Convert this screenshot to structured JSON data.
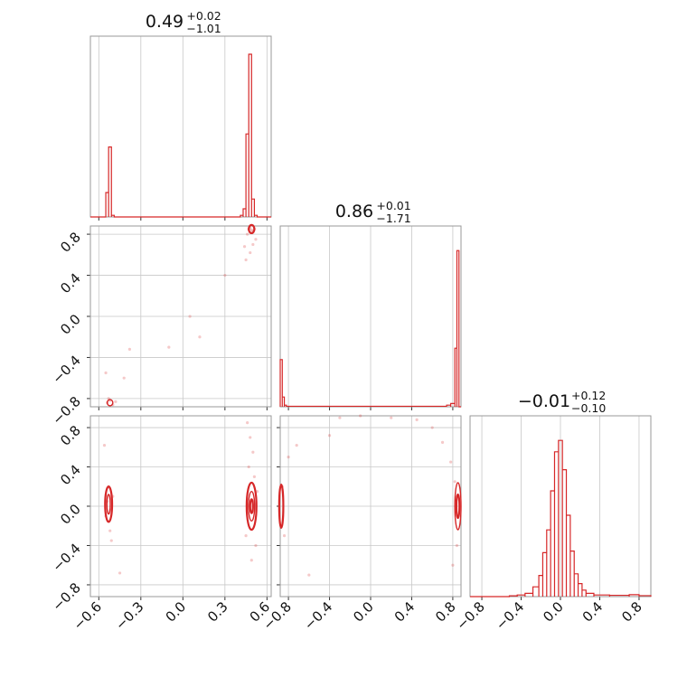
{
  "chart_data": {
    "type": "corner",
    "color": "#d62728",
    "grid": true,
    "parameters": [
      {
        "title": "0.49",
        "plus": "+0.02",
        "minus": "−1.01",
        "range": [
          -0.66,
          0.63
        ],
        "ticks": [
          -0.6,
          -0.3,
          0.0,
          0.3,
          0.6
        ],
        "tick_labels": [
          "−0.6",
          "−0.3",
          "0.0",
          "0.3",
          "0.6"
        ]
      },
      {
        "title": "0.86",
        "plus": "+0.01",
        "minus": "−1.71",
        "range": [
          -0.88,
          0.88
        ],
        "ticks": [
          -0.8,
          -0.4,
          0.0,
          0.4,
          0.8
        ],
        "tick_labels": [
          "−0.8",
          "−0.4",
          "0.0",
          "0.4",
          "0.8"
        ]
      },
      {
        "title": "−0.01",
        "plus": "+0.12",
        "minus": "−0.10",
        "range": [
          -0.92,
          0.92
        ],
        "ticks": [
          -0.8,
          -0.4,
          0.0,
          0.4,
          0.8
        ],
        "tick_labels": [
          "−0.8",
          "−0.4",
          "0.0",
          "0.4",
          "0.8"
        ]
      }
    ],
    "histograms": [
      {
        "param": 0,
        "bins": [
          [
            -0.57,
            -0.55,
            0.0
          ],
          [
            -0.55,
            -0.53,
            0.15
          ],
          [
            -0.53,
            -0.51,
            0.43
          ],
          [
            -0.51,
            -0.49,
            0.01
          ],
          [
            0.41,
            0.43,
            0.01
          ],
          [
            0.43,
            0.45,
            0.05
          ],
          [
            0.45,
            0.47,
            0.51
          ],
          [
            0.47,
            0.49,
            1.0
          ],
          [
            0.49,
            0.51,
            0.11
          ],
          [
            0.51,
            0.53,
            0.01
          ]
        ]
      },
      {
        "param": 1,
        "bins": [
          [
            -0.88,
            -0.86,
            0.29
          ],
          [
            -0.86,
            -0.84,
            0.06
          ],
          [
            -0.84,
            -0.82,
            0.01
          ],
          [
            -0.82,
            0.74,
            0.003
          ],
          [
            0.74,
            0.78,
            0.01
          ],
          [
            0.78,
            0.82,
            0.02
          ],
          [
            0.82,
            0.84,
            0.36
          ],
          [
            0.84,
            0.86,
            0.96
          ]
        ]
      },
      {
        "param": 2,
        "bins": [
          [
            -0.52,
            -0.44,
            0.005
          ],
          [
            -0.44,
            -0.36,
            0.01
          ],
          [
            -0.36,
            -0.28,
            0.02
          ],
          [
            -0.28,
            -0.22,
            0.06
          ],
          [
            -0.22,
            -0.18,
            0.13
          ],
          [
            -0.18,
            -0.14,
            0.27
          ],
          [
            -0.14,
            -0.1,
            0.41
          ],
          [
            -0.1,
            -0.06,
            0.65
          ],
          [
            -0.06,
            -0.02,
            0.89
          ],
          [
            -0.02,
            0.02,
            0.96
          ],
          [
            0.02,
            0.06,
            0.78
          ],
          [
            0.06,
            0.1,
            0.5
          ],
          [
            0.1,
            0.14,
            0.28
          ],
          [
            0.14,
            0.18,
            0.14
          ],
          [
            0.18,
            0.22,
            0.08
          ],
          [
            0.22,
            0.26,
            0.04
          ],
          [
            0.26,
            0.34,
            0.02
          ],
          [
            0.34,
            0.5,
            0.01
          ],
          [
            0.5,
            0.7,
            0.008
          ],
          [
            0.7,
            0.8,
            0.012
          ],
          [
            0.8,
            0.92,
            0.006
          ]
        ]
      }
    ],
    "scatter": [
      {
        "x_param": 0,
        "y_param": 1,
        "points": [
          [
            0.47,
            0.85
          ],
          [
            0.49,
            0.84
          ],
          [
            0.5,
            0.83
          ],
          [
            0.48,
            0.86
          ],
          [
            0.51,
            0.85
          ],
          [
            0.46,
            0.8
          ],
          [
            0.5,
            0.7
          ],
          [
            0.48,
            0.62
          ],
          [
            0.45,
            0.55
          ],
          [
            0.52,
            0.75
          ],
          [
            0.44,
            0.68
          ],
          [
            0.3,
            0.4
          ],
          [
            0.05,
            0.0
          ],
          [
            -0.1,
            -0.3
          ],
          [
            0.12,
            -0.2
          ],
          [
            -0.38,
            -0.32
          ],
          [
            -0.42,
            -0.6
          ],
          [
            -0.55,
            -0.55
          ],
          [
            -0.52,
            -0.82
          ],
          [
            -0.54,
            -0.84
          ],
          [
            -0.5,
            -0.86
          ],
          [
            -0.53,
            -0.8
          ],
          [
            -0.48,
            -0.83
          ]
        ],
        "contours": [
          {
            "cx": 0.49,
            "cy": 0.85,
            "rx": 0.02,
            "ry": 0.04
          },
          {
            "cx": -0.52,
            "cy": -0.84,
            "rx": 0.02,
            "ry": 0.03
          }
        ]
      },
      {
        "x_param": 0,
        "y_param": 2,
        "points": [
          [
            -0.53,
            0.2
          ],
          [
            -0.52,
            -0.25
          ],
          [
            -0.54,
            0.05
          ],
          [
            -0.5,
            0.1
          ],
          [
            -0.55,
            -0.1
          ],
          [
            -0.51,
            -0.35
          ],
          [
            -0.56,
            0.62
          ],
          [
            -0.45,
            -0.68
          ],
          [
            0.48,
            0.7
          ],
          [
            0.5,
            0.55
          ],
          [
            0.47,
            0.4
          ],
          [
            0.52,
            -0.4
          ],
          [
            0.49,
            -0.55
          ],
          [
            0.46,
            0.85
          ],
          [
            0.51,
            0.3
          ],
          [
            0.45,
            -0.3
          ],
          [
            0.53,
            0.15
          ]
        ],
        "contours": [
          {
            "cx": -0.53,
            "cy": 0.02,
            "rx": 0.025,
            "ry": 0.18
          },
          {
            "cx": -0.53,
            "cy": 0.02,
            "rx": 0.012,
            "ry": 0.1
          },
          {
            "cx": 0.49,
            "cy": 0.0,
            "rx": 0.035,
            "ry": 0.24
          },
          {
            "cx": 0.49,
            "cy": 0.0,
            "rx": 0.022,
            "ry": 0.15
          },
          {
            "cx": 0.49,
            "cy": 0.0,
            "rx": 0.01,
            "ry": 0.07
          }
        ]
      },
      {
        "x_param": 1,
        "y_param": 2,
        "points": [
          [
            -0.86,
            0.2
          ],
          [
            -0.84,
            -0.3
          ],
          [
            -0.8,
            0.5
          ],
          [
            -0.72,
            0.62
          ],
          [
            -0.6,
            -0.7
          ],
          [
            -0.4,
            0.72
          ],
          [
            -0.3,
            0.9
          ],
          [
            -0.1,
            0.92
          ],
          [
            0.2,
            0.9
          ],
          [
            0.45,
            0.88
          ],
          [
            0.6,
            0.8
          ],
          [
            0.7,
            0.65
          ],
          [
            0.78,
            0.45
          ],
          [
            0.84,
            -0.4
          ],
          [
            0.8,
            -0.6
          ],
          [
            0.82,
            0.25
          ]
        ],
        "contours": [
          {
            "cx": -0.87,
            "cy": 0.0,
            "rx": 0.02,
            "ry": 0.22
          },
          {
            "cx": 0.85,
            "cy": 0.0,
            "rx": 0.03,
            "ry": 0.24
          },
          {
            "cx": 0.85,
            "cy": 0.0,
            "rx": 0.015,
            "ry": 0.12
          }
        ]
      }
    ]
  }
}
